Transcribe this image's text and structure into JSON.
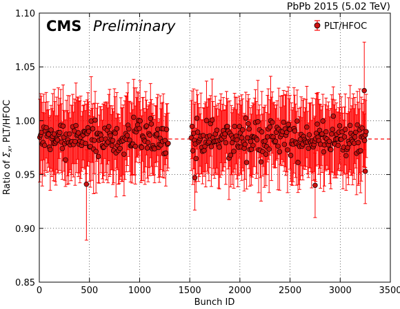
{
  "colors": {
    "series": "#ff0000",
    "marker_fill": "#cc1111",
    "marker_edge": "#000000",
    "fit_line": "#ff0000"
  },
  "chart_data": {
    "type": "scatter",
    "top_right_label": "PbPb 2015 (5.02 TeV)",
    "brand": "CMS",
    "brand_status": "Preliminary",
    "xlabel": "Bunch ID",
    "ylabel_prefix": "Ratio of ",
    "ylabel_symbol": "Σ",
    "ylabel_subscript": "x",
    "ylabel_suffix": ", PLT/HFOC",
    "xlim": [
      0,
      3500
    ],
    "ylim": [
      0.85,
      1.1
    ],
    "xticks": [
      0,
      500,
      1000,
      1500,
      2000,
      2500,
      3000,
      3500
    ],
    "yticks": [
      0.85,
      0.9,
      0.95,
      1.0,
      1.05,
      1.1
    ],
    "ytick_labels": [
      "0.85",
      "0.90",
      "0.95",
      "1.00",
      "1.05",
      "1.10"
    ],
    "grid": "dotted",
    "legend_position": "top-right",
    "series": [
      {
        "name": "PLT/HFOC",
        "marker": "circle",
        "segments": [
          {
            "start": 5,
            "end": 1290,
            "spacing": 8
          },
          {
            "start": 1515,
            "end": 3260,
            "spacing": 8
          }
        ],
        "central_value": 0.983,
        "spread": 0.012,
        "typical_error": 0.032,
        "outliers": [
          {
            "x": 470,
            "y": 0.941,
            "yerr_low": 0.052,
            "yerr_high": 0.032
          },
          {
            "x": 2750,
            "y": 0.94,
            "yerr_low": 0.03,
            "yerr_high": 0.03
          },
          {
            "x": 3240,
            "y": 1.028,
            "yerr_low": 0.055,
            "yerr_high": 0.045
          },
          {
            "x": 3250,
            "y": 0.953,
            "yerr_low": 0.03,
            "yerr_high": 0.03
          },
          {
            "x": 1550,
            "y": 0.947,
            "yerr_low": 0.03,
            "yerr_high": 0.03
          }
        ]
      }
    ],
    "reference_line": {
      "y": 0.983,
      "style": "dashed",
      "x_start": 3280,
      "x_end": 3500,
      "x_start2": 1290,
      "x_end2": 1515
    }
  }
}
